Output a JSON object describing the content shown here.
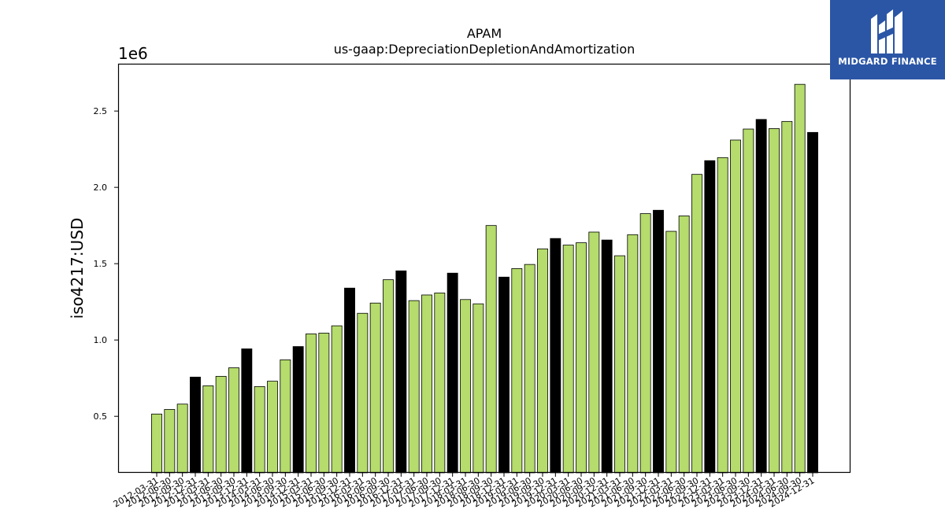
{
  "logo": {
    "text": "MIDGARD FINANCE"
  },
  "chart_data": {
    "type": "bar",
    "title": "APAM",
    "subtitle": "us-gaap:DepreciationDepletionAndAmortization",
    "ylabel": "iso4217:USD",
    "xlabel": "",
    "y_offset_label": "1e6",
    "ylim": [
      130000,
      2810000
    ],
    "yticks": [
      500000,
      1000000,
      1500000,
      2000000,
      2500000
    ],
    "ytick_labels": [
      "0.5",
      "1.0",
      "1.5",
      "2.0",
      "2.5"
    ],
    "colors": {
      "quarter": "#b5dc6c",
      "year_end": "#000000"
    },
    "categories": [
      "2012-03-31",
      "2012-06-30",
      "2012-09-30",
      "2012-12-31",
      "2013-03-31",
      "2013-06-30",
      "2013-09-30",
      "2013-12-31",
      "2014-03-31",
      "2014-06-30",
      "2014-09-30",
      "2014-12-31",
      "2015-03-31",
      "2015-06-30",
      "2015-09-30",
      "2015-12-31",
      "2016-03-31",
      "2016-06-30",
      "2016-09-30",
      "2016-12-31",
      "2017-03-31",
      "2017-06-30",
      "2017-09-30",
      "2017-12-31",
      "2018-03-31",
      "2018-06-30",
      "2018-09-30",
      "2018-12-31",
      "2019-03-31",
      "2019-06-30",
      "2019-09-30",
      "2019-12-31",
      "2020-03-31",
      "2020-06-30",
      "2020-09-30",
      "2020-12-31",
      "2021-03-31",
      "2021-06-30",
      "2021-09-30",
      "2021-12-31",
      "2022-03-31",
      "2022-06-30",
      "2022-09-30",
      "2022-12-31",
      "2023-03-31",
      "2023-06-30",
      "2023-09-30",
      "2023-12-31",
      "2024-03-31",
      "2024-06-30",
      "2024-09-30",
      "2024-12-31"
    ],
    "values": [
      515000,
      545000,
      580000,
      757000,
      700000,
      762000,
      818000,
      942000,
      695000,
      730000,
      870000,
      957000,
      1040000,
      1045000,
      1093000,
      1340000,
      1175000,
      1242000,
      1395000,
      1453000,
      1258000,
      1295000,
      1308000,
      1438000,
      1265000,
      1237000,
      1750000,
      1412000,
      1468000,
      1495000,
      1597000,
      1665000,
      1622000,
      1637000,
      1707000,
      1655000,
      1552000,
      1690000,
      1828000,
      1850000,
      1712000,
      1813000,
      2085000,
      2175000,
      2195000,
      2310000,
      2382000,
      2445000,
      2385000,
      2432000,
      2675000,
      2360000
    ],
    "year_end_flags": [
      0,
      0,
      0,
      1,
      0,
      0,
      0,
      1,
      0,
      0,
      0,
      1,
      0,
      0,
      0,
      1,
      0,
      0,
      0,
      1,
      0,
      0,
      0,
      1,
      0,
      0,
      0,
      1,
      0,
      0,
      0,
      1,
      0,
      0,
      0,
      1,
      0,
      0,
      0,
      1,
      0,
      0,
      0,
      1,
      0,
      0,
      0,
      1,
      0,
      0,
      0,
      1
    ],
    "grid": false,
    "legend": "none"
  }
}
